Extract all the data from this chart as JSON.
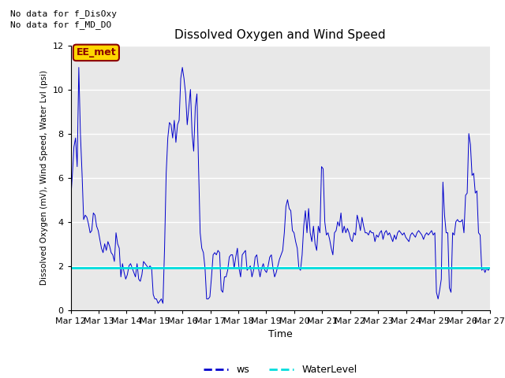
{
  "title": "Dissolved Oxygen and Wind Speed",
  "xlabel": "Time",
  "ylabel": "Dissolved Oxygen (mV), Wind Speed, Water Lvl (psi)",
  "ylim": [
    0,
    12
  ],
  "annotation1": "No data for f_DisOxy",
  "annotation2": "No data for f_MD_DO",
  "box_label": "EE_met",
  "water_level": 1.9,
  "ws_color": "#0000CC",
  "water_color": "#00DDDD",
  "bg_color": "#E8E8E8",
  "fig_bg": "#FFFFFF",
  "x_tick_labels": [
    "Mar 12",
    "Mar 13",
    "Mar 14",
    "Mar 15",
    "Mar 16",
    "Mar 17",
    "Mar 18",
    "Mar 19",
    "Mar 20",
    "Mar 21",
    "Mar 22",
    "Mar 23",
    "Mar 24",
    "Mar 25",
    "Mar 26",
    "Mar 27"
  ],
  "ws_data": [
    5.0,
    6.1,
    7.4,
    7.8,
    6.5,
    11.0,
    8.0,
    6.2,
    4.1,
    4.3,
    4.2,
    3.9,
    3.5,
    3.6,
    4.4,
    4.3,
    3.8,
    3.6,
    3.2,
    2.8,
    2.6,
    3.0,
    2.7,
    3.1,
    2.9,
    2.6,
    2.5,
    2.2,
    3.5,
    3.0,
    2.8,
    1.5,
    2.1,
    1.7,
    1.4,
    1.6,
    2.0,
    2.1,
    1.9,
    1.7,
    1.5,
    2.1,
    1.4,
    1.3,
    1.6,
    2.2,
    2.1,
    2.0,
    1.9,
    2.0,
    1.9,
    0.7,
    0.5,
    0.5,
    0.3,
    0.4,
    0.5,
    0.3,
    2.8,
    6.2,
    7.8,
    8.5,
    8.4,
    7.8,
    8.6,
    7.6,
    8.4,
    8.6,
    10.5,
    11.0,
    10.5,
    9.8,
    8.4,
    9.2,
    10.0,
    8.0,
    7.2,
    9.2,
    9.8,
    6.5,
    3.5,
    2.8,
    2.6,
    1.9,
    0.5,
    0.5,
    0.6,
    1.5,
    2.5,
    2.6,
    2.5,
    2.7,
    2.6,
    0.9,
    0.8,
    1.5,
    1.5,
    1.8,
    2.4,
    2.5,
    2.5,
    1.9,
    2.4,
    2.8,
    1.9,
    1.5,
    2.5,
    2.6,
    2.7,
    1.8,
    1.9,
    2.0,
    1.5,
    1.8,
    2.4,
    2.5,
    1.9,
    1.5,
    1.9,
    2.1,
    1.8,
    1.7,
    2.0,
    2.4,
    2.5,
    1.9,
    1.5,
    1.7,
    2.0,
    2.3,
    2.5,
    2.7,
    3.5,
    4.7,
    5.0,
    4.6,
    4.5,
    3.6,
    3.5,
    3.1,
    2.8,
    1.9,
    1.8,
    2.5,
    3.8,
    4.5,
    3.5,
    4.6,
    3.5,
    3.1,
    3.8,
    3.0,
    2.7,
    3.8,
    3.5,
    6.5,
    6.4,
    4.0,
    3.4,
    3.5,
    3.2,
    2.8,
    2.5,
    3.5,
    3.6,
    4.0,
    3.8,
    4.4,
    3.5,
    3.8,
    3.5,
    3.7,
    3.5,
    3.2,
    3.1,
    3.5,
    3.4,
    4.3,
    4.0,
    3.6,
    4.2,
    3.8,
    3.5,
    3.5,
    3.4,
    3.6,
    3.5,
    3.5,
    3.1,
    3.4,
    3.3,
    3.5,
    3.6,
    3.2,
    3.5,
    3.6,
    3.4,
    3.5,
    3.3,
    3.1,
    3.4,
    3.2,
    3.5,
    3.6,
    3.5,
    3.4,
    3.5,
    3.3,
    3.2,
    3.1,
    3.4,
    3.5,
    3.4,
    3.3,
    3.5,
    3.6,
    3.5,
    3.4,
    3.2,
    3.4,
    3.5,
    3.4,
    3.5,
    3.6,
    3.4,
    3.5,
    0.8,
    0.5,
    0.9,
    1.4,
    5.8,
    4.3,
    3.5,
    3.5,
    1.0,
    0.8,
    3.5,
    3.4,
    4.0,
    4.1,
    4.0,
    4.0,
    4.1,
    3.5,
    5.2,
    5.3,
    8.0,
    7.5,
    6.1,
    6.2,
    5.3,
    5.4,
    3.5,
    3.4,
    1.8,
    1.9,
    1.7,
    1.9,
    1.8,
    1.9
  ]
}
